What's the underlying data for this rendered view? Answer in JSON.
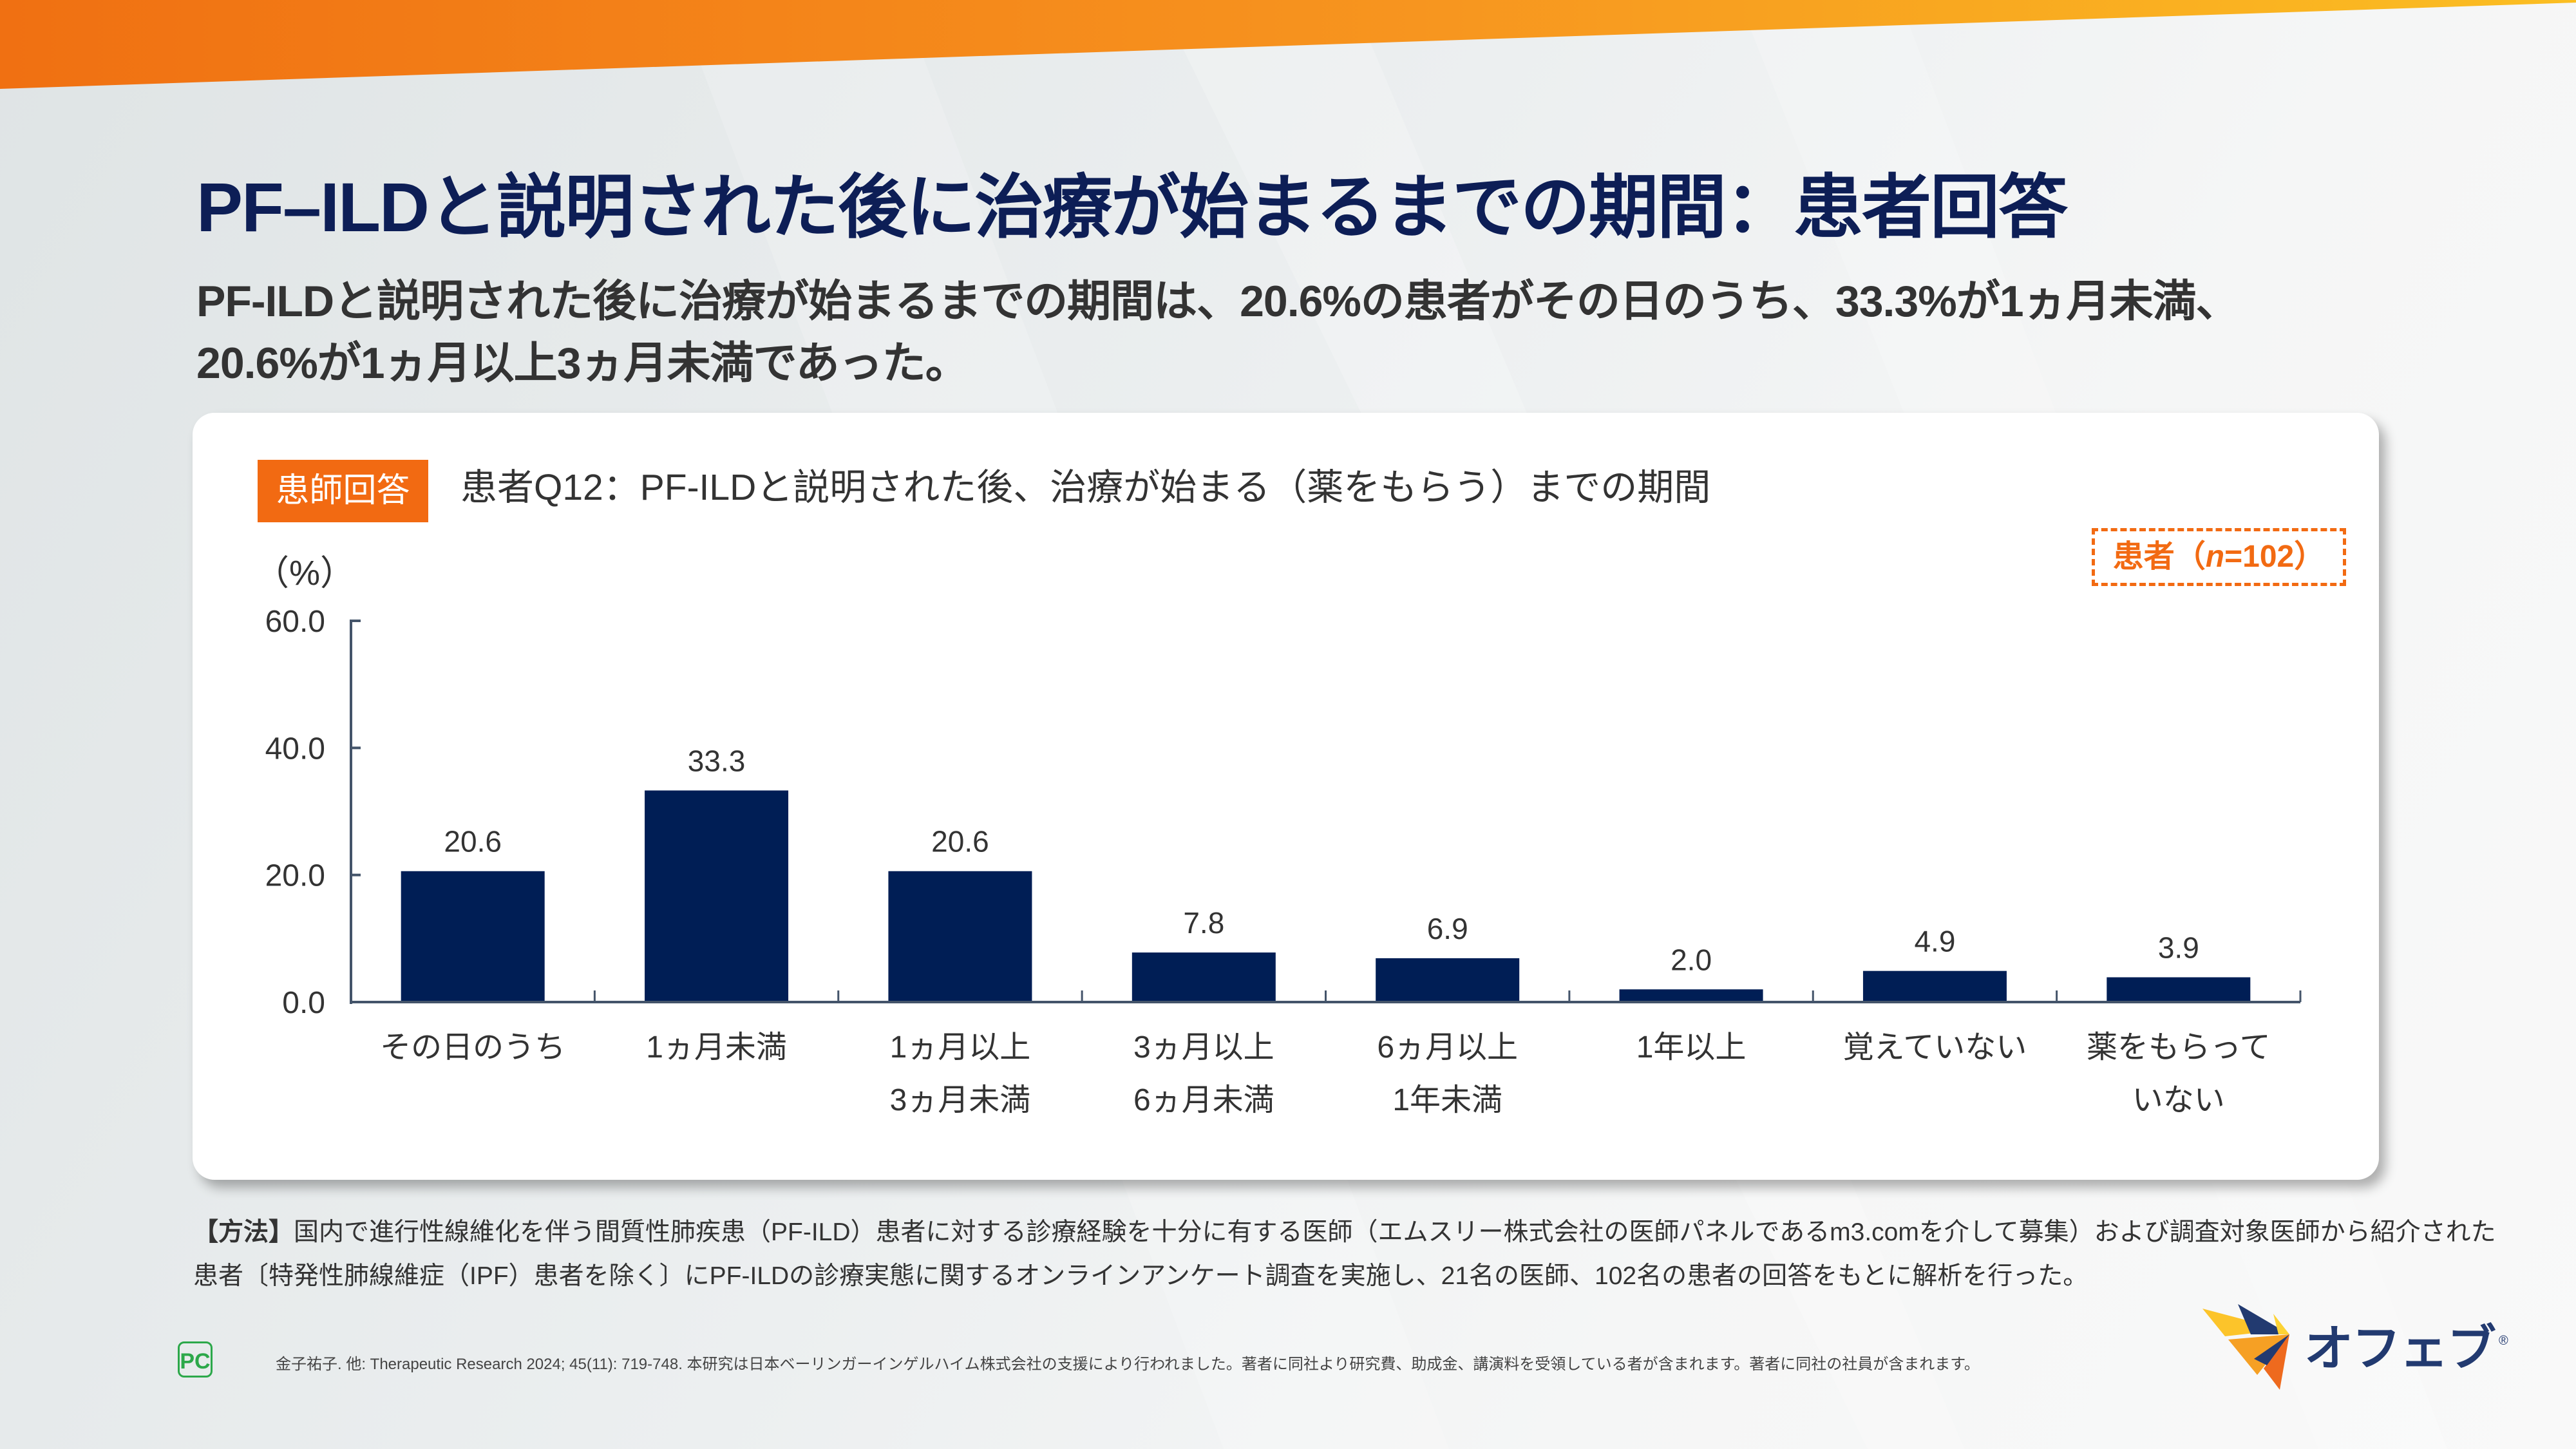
{
  "slide": {
    "title": "PF–ILDと説明された後に治療が始まるまでの期間：患者回答",
    "subtitle_lines": [
      "PF-ILDと説明された後に治療が始まるまでの期間は、20.6%の患者がその日のうち、33.3%が1ヵ月未満、",
      "20.6%が1ヵ月以上3ヵ月未満であった。"
    ],
    "colors": {
      "title": "#0D1E56",
      "accent_orange": "#F26A12",
      "bar": "#001E55",
      "axis": "#44546A",
      "band_start": "#F07010",
      "band_end": "#FBBE20"
    }
  },
  "card": {
    "badge_label": "患師回答",
    "chart_title": "患者Q12：PF-ILDと説明された後、治療が始まる（薬をもらう）までの期間",
    "sample_prefix": "患者（",
    "sample_n_label": "n",
    "sample_suffix": "=102）",
    "unit_label": "（%）"
  },
  "chart_data": {
    "type": "bar",
    "title": "患者Q12：PF-ILDと説明された後、治療が始まる（薬をもらう）までの期間",
    "xlabel": "",
    "ylabel": "（%）",
    "ylim": [
      0,
      60
    ],
    "yticks": [
      0,
      20,
      40,
      60
    ],
    "ytick_labels": [
      "0.0",
      "20.0",
      "40.0",
      "60.0"
    ],
    "grid": false,
    "legend": "患者（n=102）",
    "legend_position": "top-right",
    "categories": [
      [
        "その日のうち"
      ],
      [
        "1ヵ月未満"
      ],
      [
        "1ヵ月以上",
        "3ヵ月未満"
      ],
      [
        "3ヵ月以上",
        "6ヵ月未満"
      ],
      [
        "6ヵ月以上",
        "1年未満"
      ],
      [
        "1年以上"
      ],
      [
        "覚えていない"
      ],
      [
        "薬をもらって",
        "いない"
      ]
    ],
    "values": [
      20.6,
      33.3,
      20.6,
      7.8,
      6.9,
      2.0,
      4.9,
      3.9
    ],
    "value_labels": [
      "20.6",
      "33.3",
      "20.6",
      "7.8",
      "6.9",
      "2.0",
      "4.9",
      "3.9"
    ]
  },
  "footer": {
    "methods_label": "【方法】",
    "methods_line1": "国内で進行性線維化を伴う間質性肺疾患（PF-ILD）患者に対する診療経験を十分に有する医師（エムスリー株式会社の医師パネルであるm3.comを介して募集）および調査対象医師から紹介された",
    "methods_line2": "患者〔特発性肺線維症（IPF）患者を除く〕にPF-ILDの診療実態に関するオンラインアンケート調査を実施し、21名の医師、102名の患者の回答をもとに解析を行った。",
    "pc_logo": "PC",
    "citation": "金子祐子. 他: Therapeutic Research 2024; 45(11): 719-748.  本研究は日本ベーリンガーインゲルハイム株式会社の支援により行われました。著者に同社より研究費、助成金、講演料を受領している者が含まれます。著者に同社の社員が含まれます。",
    "brand_name": "オフェブ",
    "brand_reg": "®"
  }
}
